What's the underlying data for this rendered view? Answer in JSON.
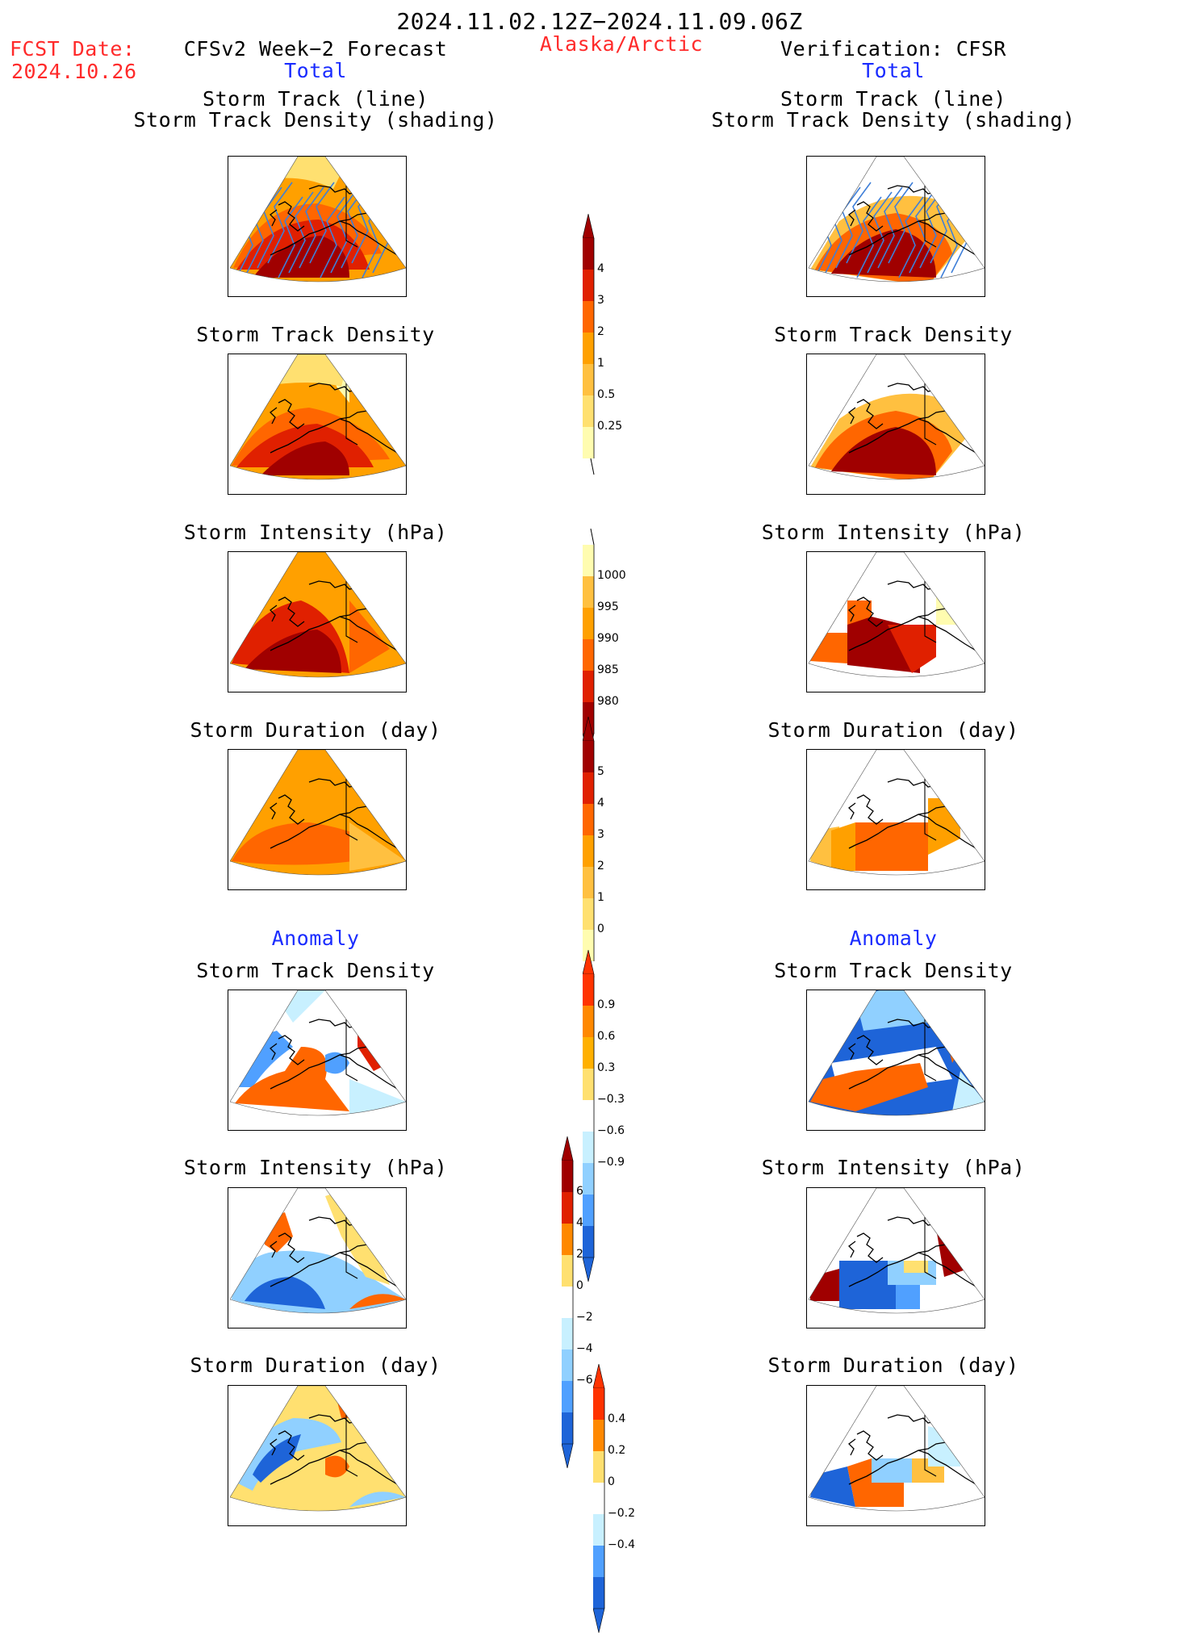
{
  "header": {
    "title": "2024.11.02.12Z−2024.11.09.06Z",
    "fcst_label": "FCST Date:",
    "fcst_date": "2024.10.26",
    "region": "Alaska/Arctic",
    "left_source": "CFSv2 Week−2 Forecast",
    "right_source": "Verification: CFSR"
  },
  "sections": {
    "total": "Total",
    "anomaly": "Anomaly"
  },
  "panel_titles": {
    "track_line": "Storm Track (line)",
    "track_density_shading": "Storm Track Density (shading)",
    "track_density": "Storm Track Density",
    "intensity": "Storm Intensity (hPa)",
    "duration": "Storm Duration (day)"
  },
  "colorbars": {
    "density": [
      "4",
      "3",
      "2",
      "1",
      "0.5",
      "0.25"
    ],
    "intensity": [
      "1000",
      "995",
      "990",
      "985",
      "980"
    ],
    "duration": [
      "5",
      "4",
      "3",
      "2",
      "1",
      "0"
    ],
    "density_anom": [
      "0.9",
      "0.6",
      "0.3",
      "−0.3",
      "−0.6",
      "−0.9"
    ],
    "intensity_anom": [
      "6",
      "4",
      "2",
      "0",
      "−2",
      "−4",
      "−6"
    ],
    "duration_anom": [
      "0.4",
      "0.2",
      "0",
      "−0.2",
      "−0.4"
    ]
  },
  "colors": {
    "warm": [
      "#fffcb0",
      "#ffe070",
      "#ffc040",
      "#ffa000",
      "#ff6600",
      "#e02000",
      "#a00000"
    ],
    "cool": [
      "#c8f0ff",
      "#90d0ff",
      "#50a0ff",
      "#1e64d8"
    ],
    "title_red": "#ff2a2a",
    "title_blue": "#1a2cff"
  }
}
